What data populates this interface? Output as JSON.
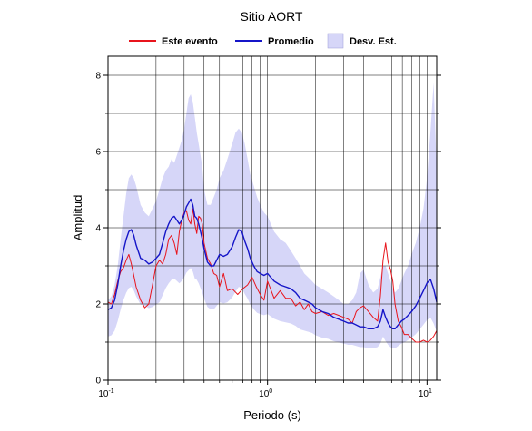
{
  "chart_data": {
    "type": "line",
    "title": "Sitio AORT",
    "xlabel": "Periodo (s)",
    "ylabel": "Amplitud",
    "xscale": "log",
    "xlim": [
      0.1,
      11.5
    ],
    "ylim": [
      0,
      8.5
    ],
    "xticks": [
      {
        "value": 0.1,
        "base": "10",
        "exp": "-1"
      },
      {
        "value": 1,
        "base": "10",
        "exp": "0"
      },
      {
        "value": 10,
        "base": "10",
        "exp": "1"
      }
    ],
    "yticks": [
      "0",
      "2",
      "4",
      "6",
      "8"
    ],
    "grid": true,
    "legend_position": "top",
    "legend": [
      {
        "label": "Este evento",
        "kind": "line",
        "color": "#e8141c"
      },
      {
        "label": "Promedio",
        "kind": "line",
        "color": "#1515c8"
      },
      {
        "label": "Desv. Est.",
        "kind": "band",
        "color": "#d6d6f8"
      }
    ],
    "series": [
      {
        "name": "Este evento",
        "color": "#e8141c",
        "x": [
          0.1,
          0.105,
          0.11,
          0.115,
          0.12,
          0.125,
          0.13,
          0.135,
          0.14,
          0.145,
          0.15,
          0.16,
          0.17,
          0.18,
          0.19,
          0.2,
          0.21,
          0.22,
          0.23,
          0.24,
          0.25,
          0.26,
          0.27,
          0.28,
          0.29,
          0.3,
          0.31,
          0.32,
          0.33,
          0.34,
          0.35,
          0.36,
          0.37,
          0.38,
          0.39,
          0.4,
          0.42,
          0.44,
          0.46,
          0.48,
          0.5,
          0.53,
          0.56,
          0.6,
          0.65,
          0.7,
          0.75,
          0.8,
          0.85,
          0.9,
          0.95,
          1.0,
          1.1,
          1.2,
          1.3,
          1.4,
          1.5,
          1.6,
          1.7,
          1.8,
          1.9,
          2.0,
          2.2,
          2.4,
          2.6,
          2.8,
          3.0,
          3.2,
          3.4,
          3.6,
          3.8,
          4.0,
          4.3,
          4.6,
          4.9,
          5.1,
          5.3,
          5.5,
          5.7,
          5.9,
          6.1,
          6.3,
          6.6,
          6.9,
          7.2,
          7.6,
          8.0,
          8.5,
          9.0,
          9.5,
          10.0,
          10.5,
          11.0,
          11.5
        ],
        "y": [
          2.05,
          2.0,
          2.25,
          2.6,
          2.85,
          2.95,
          3.15,
          3.3,
          3.05,
          2.75,
          2.45,
          2.1,
          1.9,
          2.0,
          2.5,
          3.0,
          3.15,
          3.05,
          3.3,
          3.7,
          3.8,
          3.6,
          3.3,
          3.9,
          4.2,
          4.4,
          4.45,
          4.2,
          4.1,
          4.5,
          4.1,
          3.85,
          4.3,
          4.25,
          4.1,
          3.6,
          3.2,
          3.05,
          2.8,
          2.75,
          2.45,
          2.8,
          2.35,
          2.4,
          2.25,
          2.4,
          2.5,
          2.7,
          2.45,
          2.25,
          2.1,
          2.6,
          2.15,
          2.35,
          2.15,
          2.15,
          1.95,
          2.05,
          1.85,
          2.0,
          1.8,
          1.75,
          1.8,
          1.7,
          1.75,
          1.7,
          1.65,
          1.6,
          1.5,
          1.8,
          1.9,
          1.95,
          1.8,
          1.65,
          1.55,
          2.2,
          3.15,
          3.6,
          3.1,
          2.9,
          2.6,
          2.0,
          1.55,
          1.4,
          1.2,
          1.2,
          1.1,
          1.0,
          1.0,
          1.05,
          1.0,
          1.05,
          1.15,
          1.3
        ]
      },
      {
        "name": "Promedio",
        "color": "#1515c8",
        "x": [
          0.1,
          0.105,
          0.11,
          0.115,
          0.12,
          0.125,
          0.13,
          0.135,
          0.14,
          0.145,
          0.15,
          0.16,
          0.17,
          0.18,
          0.19,
          0.2,
          0.21,
          0.22,
          0.23,
          0.24,
          0.25,
          0.26,
          0.27,
          0.28,
          0.29,
          0.3,
          0.31,
          0.32,
          0.33,
          0.34,
          0.35,
          0.36,
          0.37,
          0.38,
          0.39,
          0.4,
          0.42,
          0.44,
          0.46,
          0.48,
          0.5,
          0.53,
          0.56,
          0.6,
          0.63,
          0.66,
          0.69,
          0.72,
          0.75,
          0.78,
          0.82,
          0.86,
          0.9,
          0.95,
          1.0,
          1.1,
          1.2,
          1.3,
          1.4,
          1.5,
          1.6,
          1.7,
          1.8,
          1.9,
          2.0,
          2.2,
          2.4,
          2.6,
          2.8,
          3.0,
          3.2,
          3.4,
          3.6,
          3.8,
          4.0,
          4.3,
          4.6,
          4.9,
          5.1,
          5.3,
          5.5,
          5.7,
          5.9,
          6.1,
          6.3,
          6.6,
          6.9,
          7.2,
          7.6,
          8.0,
          8.5,
          9.0,
          9.5,
          10.0,
          10.5,
          11.0,
          11.5
        ],
        "y": [
          1.85,
          1.9,
          2.1,
          2.5,
          3.0,
          3.4,
          3.7,
          3.9,
          3.95,
          3.8,
          3.55,
          3.2,
          3.15,
          3.05,
          3.1,
          3.2,
          3.3,
          3.6,
          3.9,
          4.1,
          4.25,
          4.3,
          4.2,
          4.1,
          4.2,
          4.35,
          4.55,
          4.65,
          4.75,
          4.6,
          4.3,
          4.25,
          4.1,
          3.9,
          3.7,
          3.45,
          3.1,
          3.0,
          3.0,
          3.15,
          3.3,
          3.25,
          3.3,
          3.5,
          3.75,
          3.95,
          3.9,
          3.65,
          3.45,
          3.2,
          3.0,
          2.85,
          2.8,
          2.75,
          2.8,
          2.6,
          2.5,
          2.45,
          2.4,
          2.3,
          2.15,
          2.1,
          2.05,
          2.0,
          1.9,
          1.8,
          1.75,
          1.65,
          1.6,
          1.55,
          1.5,
          1.5,
          1.45,
          1.4,
          1.4,
          1.35,
          1.35,
          1.4,
          1.55,
          1.85,
          1.65,
          1.5,
          1.4,
          1.35,
          1.35,
          1.45,
          1.55,
          1.6,
          1.7,
          1.8,
          1.95,
          2.15,
          2.35,
          2.55,
          2.65,
          2.4,
          2.05
        ]
      }
    ],
    "band": {
      "name": "Desv. Est.",
      "color": "#d6d6f8",
      "x": [
        0.1,
        0.105,
        0.11,
        0.115,
        0.12,
        0.125,
        0.13,
        0.135,
        0.14,
        0.145,
        0.15,
        0.16,
        0.17,
        0.18,
        0.19,
        0.2,
        0.21,
        0.22,
        0.23,
        0.24,
        0.25,
        0.26,
        0.27,
        0.28,
        0.29,
        0.3,
        0.31,
        0.32,
        0.33,
        0.34,
        0.35,
        0.36,
        0.37,
        0.38,
        0.39,
        0.4,
        0.42,
        0.44,
        0.46,
        0.48,
        0.5,
        0.53,
        0.56,
        0.6,
        0.63,
        0.66,
        0.69,
        0.72,
        0.75,
        0.78,
        0.82,
        0.86,
        0.9,
        0.95,
        1.0,
        1.1,
        1.2,
        1.3,
        1.4,
        1.5,
        1.6,
        1.7,
        1.8,
        1.9,
        2.0,
        2.2,
        2.4,
        2.6,
        2.8,
        3.0,
        3.2,
        3.4,
        3.6,
        3.8,
        4.0,
        4.3,
        4.6,
        4.9,
        5.1,
        5.3,
        5.5,
        5.7,
        5.9,
        6.1,
        6.3,
        6.6,
        6.9,
        7.2,
        7.6,
        8.0,
        8.5,
        9.0,
        9.5,
        10.0,
        10.5,
        11.0,
        11.5
      ],
      "upper": [
        2.1,
        2.2,
        2.5,
        3.0,
        3.7,
        4.3,
        4.9,
        5.3,
        5.4,
        5.3,
        5.1,
        4.6,
        4.4,
        4.3,
        4.5,
        4.7,
        5.0,
        5.3,
        5.5,
        5.6,
        5.8,
        5.7,
        5.9,
        6.1,
        6.3,
        6.6,
        7.0,
        7.4,
        7.5,
        7.3,
        6.9,
        6.5,
        6.2,
        5.9,
        5.6,
        5.0,
        4.6,
        4.6,
        4.8,
        5.0,
        5.3,
        5.5,
        5.8,
        6.2,
        6.5,
        6.6,
        6.5,
        6.2,
        5.8,
        5.4,
        5.1,
        4.8,
        4.6,
        4.4,
        4.3,
        3.9,
        3.7,
        3.6,
        3.4,
        3.2,
        3.0,
        2.8,
        2.7,
        2.6,
        2.5,
        2.4,
        2.3,
        2.2,
        2.1,
        2.0,
        2.0,
        2.1,
        2.3,
        2.8,
        2.9,
        2.5,
        2.3,
        2.4,
        2.7,
        3.0,
        3.0,
        2.8,
        2.6,
        2.4,
        2.3,
        2.4,
        2.6,
        2.8,
        3.0,
        3.3,
        3.6,
        4.0,
        4.5,
        5.3,
        6.5,
        7.8,
        5.5
      ]
    }
  }
}
